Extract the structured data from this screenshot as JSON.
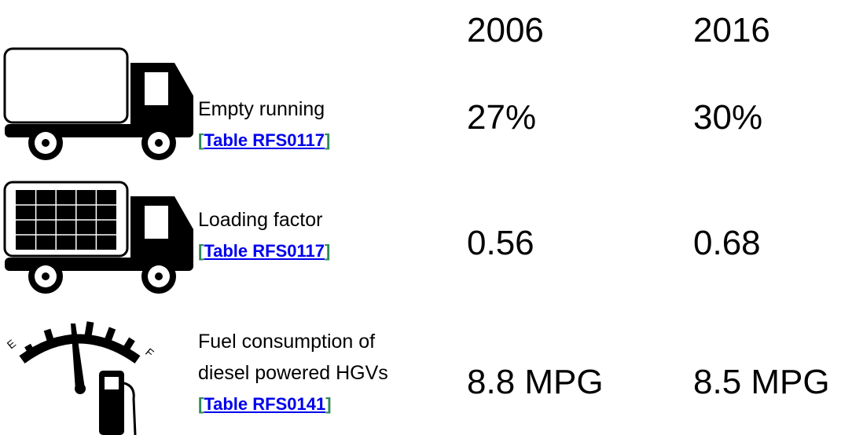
{
  "columns": [
    "2006",
    "2016"
  ],
  "link_open": "[",
  "link_close": "]",
  "gauge": {
    "empty": "E",
    "full": "F"
  },
  "rows": [
    {
      "label": [
        "Empty running"
      ],
      "link": "Table RFS0117",
      "values": [
        "27%",
        "30%"
      ]
    },
    {
      "label": [
        "Loading factor"
      ],
      "link": "Table RFS0117",
      "values": [
        "0.56",
        "0.68"
      ]
    },
    {
      "label": [
        "Fuel consumption of",
        "diesel powered HGVs"
      ],
      "link": "Table RFS0141",
      "values": [
        "8.8 MPG",
        "8.5 MPG"
      ]
    }
  ]
}
